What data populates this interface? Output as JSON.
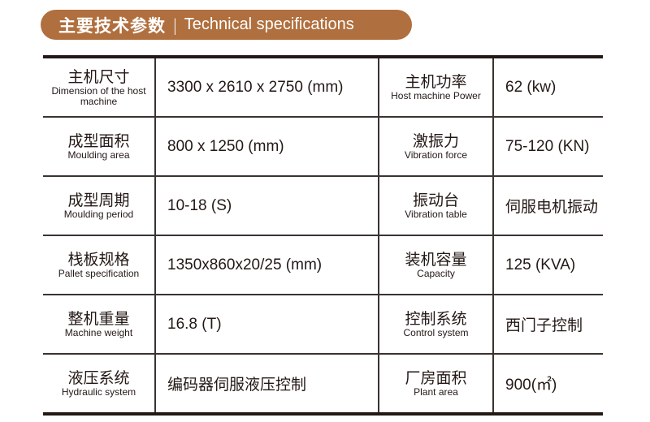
{
  "header": {
    "title_cn": "主要技术参数",
    "separator": "|",
    "title_en": "Technical specifications",
    "color": "#b06f3e"
  },
  "rows": [
    [
      {
        "cn": "主机尺寸",
        "en": "Dimension of the host machine",
        "value": "3300 x 2610 x 2750 (mm)"
      },
      {
        "cn": "主机功率",
        "en": "Host machine Power",
        "value": "62 (kw)"
      }
    ],
    [
      {
        "cn": "成型面积",
        "en": "Moulding area",
        "value": "800 x 1250 (mm)"
      },
      {
        "cn": "激振力",
        "en": "Vibration force",
        "value": "75-120 (KN)"
      }
    ],
    [
      {
        "cn": "成型周期",
        "en": "Moulding period",
        "value": "10-18 (S)"
      },
      {
        "cn": "振动台",
        "en": "Vibration table",
        "value": "伺服电机振动"
      }
    ],
    [
      {
        "cn": "栈板规格",
        "en": "Pallet specification",
        "value": "1350x860x20/25 (mm)"
      },
      {
        "cn": "装机容量",
        "en": "Capacity",
        "value": "125 (KVA)"
      }
    ],
    [
      {
        "cn": "整机重量",
        "en": "Machine weight",
        "value": "16.8 (T)"
      },
      {
        "cn": "控制系统",
        "en": "Control system",
        "value": "西门子控制"
      }
    ],
    [
      {
        "cn": "液压系统",
        "en": "Hydraulic system",
        "value": "编码器伺服液压控制"
      },
      {
        "cn": "厂房面积",
        "en": "Plant area",
        "value": "900(㎡)"
      }
    ]
  ]
}
